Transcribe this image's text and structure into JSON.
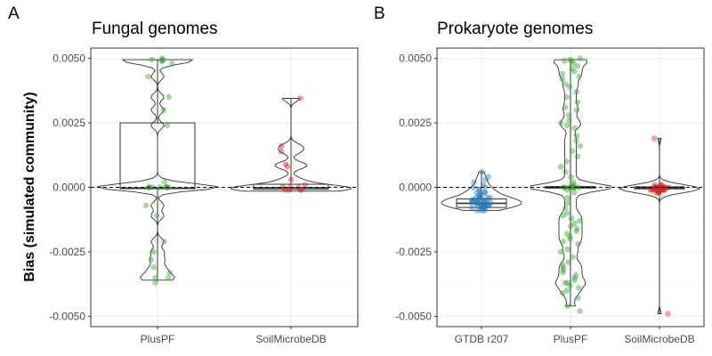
{
  "colors": {
    "GTDB r207": "#1f78b4",
    "PlusPF": "#33a02c",
    "SoilMicrobeDB": "#e31a1c",
    "grid_major": "#ebebeb",
    "grid_minor": "#f5f5f5",
    "panel_border": "#333333",
    "zero_line": "#000000"
  },
  "ylabel": "Bias (simulated community)",
  "chart_data": [
    {
      "type": "box_violin_jitter",
      "panel_letter": "A",
      "title": "Fungal genomes",
      "ylabel": "Bias (simulated community)",
      "ylim": [
        -0.0054,
        0.0054
      ],
      "yticks": [
        0.005,
        0.0025,
        0.0,
        -0.0025,
        -0.005
      ],
      "ytick_labels": [
        "0.0050",
        "0.0025",
        "0.0000",
        "-0.0025",
        "-0.0050"
      ],
      "zero_reference_line": 0,
      "grid": true,
      "categories": [
        "PlusPF",
        "SoilMicrobeDB"
      ],
      "groups": [
        {
          "name": "PlusPF",
          "box": {
            "q1": -5e-05,
            "median": -3e-05,
            "q3": 0.0025,
            "whisker_low": -0.0036,
            "whisker_high": 0.00495
          },
          "violin_range": [
            -0.0036,
            0.00495
          ],
          "points": [
            0.005,
            0.00495,
            0.0049,
            0.0048,
            0.00495,
            0.0049,
            0.0043,
            0.0035,
            0.003,
            0.0024,
            0.0002,
            0.0,
            0.0,
            0.0,
            0.0,
            0.0,
            0.0,
            0.0,
            0.0,
            0.0,
            -0.0007,
            -0.0011,
            -0.0021,
            -0.0025,
            -0.0028,
            -0.0031,
            -0.0033,
            -0.0035,
            -0.0035,
            -0.0037
          ]
        },
        {
          "name": "SoilMicrobeDB",
          "box": {
            "q1": -8e-05,
            "median": -2e-05,
            "q3": 0.00012,
            "whisker_low": -0.00015,
            "whisker_high": 0.00345
          },
          "violin_range": [
            -0.00015,
            0.00345
          ],
          "points": [
            0.00345,
            0.0016,
            0.0014,
            0.0009,
            0.0008,
            0.0003,
            0.0001,
            0.0,
            0.0,
            0.0,
            -0.0001,
            -0.0001,
            -0.0001,
            -0.0001
          ]
        }
      ]
    },
    {
      "type": "box_violin_jitter",
      "panel_letter": "B",
      "title": "Prokaryote genomes",
      "ylim": [
        -0.0054,
        0.0054
      ],
      "yticks": [
        0.005,
        0.0025,
        0.0,
        -0.0025,
        -0.005
      ],
      "ytick_labels": [
        "0.0050",
        "0.0025",
        "0.0000",
        "-0.0025",
        "-0.0050"
      ],
      "zero_reference_line": 0,
      "grid": true,
      "categories": [
        "GTDB r207",
        "PlusPF",
        "SoilMicrobeDB"
      ],
      "groups": [
        {
          "name": "GTDB r207",
          "box": {
            "q1": -0.00078,
            "median": -0.00062,
            "q3": -0.00045,
            "whisker_low": -0.0009,
            "whisker_high": 0.0006
          },
          "violin_range": [
            -0.0009,
            0.0006
          ],
          "points": [
            0.0006,
            0.0004,
            0.0003,
            0.0002,
            0.0001,
            0.0,
            0.0,
            -0.0001,
            -0.0002,
            -0.0002,
            -0.0003,
            -0.0003,
            -0.0004,
            -0.0004,
            -0.0004,
            -0.0005,
            -0.0005,
            -0.0005,
            -0.0005,
            -0.0006,
            -0.0006,
            -0.0006,
            -0.0006,
            -0.0006,
            -0.0007,
            -0.0007,
            -0.0007,
            -0.0007,
            -0.0007,
            -0.0008,
            -0.0008,
            -0.0008,
            -0.0008,
            -0.0009,
            -0.0009,
            -0.0009,
            -0.0005,
            -0.0006,
            -0.0004,
            -0.0003,
            -0.0007,
            -0.0006,
            -0.0005,
            -0.0008,
            -0.0002,
            -0.0001,
            -0.0004,
            -0.0006,
            -0.0007,
            -0.0005
          ]
        },
        {
          "name": "PlusPF",
          "box": {
            "q1": -3e-05,
            "median": 0.0,
            "q3": 3e-05,
            "whisker_low": -0.0046,
            "whisker_high": 0.00495
          },
          "violin_range": [
            -0.0046,
            0.00495
          ],
          "points": [
            0.005,
            0.00495,
            0.0049,
            0.0049,
            0.0048,
            0.0047,
            0.0046,
            0.0045,
            0.0044,
            0.0043,
            0.0042,
            0.004,
            0.0039,
            0.0037,
            0.0035,
            0.0033,
            0.0031,
            0.003,
            0.0028,
            0.0026,
            0.0025,
            0.0024,
            0.0023,
            0.002,
            0.0018,
            0.0016,
            0.0014,
            0.0012,
            0.001,
            0.0008,
            0.0006,
            0.0004,
            0.0002,
            0.0001,
            0.0,
            0.0,
            0.0,
            0.0,
            0.0,
            0.0,
            0.0,
            0.0,
            0.0,
            0.0,
            -0.0001,
            -0.0002,
            -0.0004,
            -0.0006,
            -0.0008,
            -0.001,
            -0.0011,
            -0.0012,
            -0.0013,
            -0.0014,
            -0.0015,
            -0.0016,
            -0.0017,
            -0.0018,
            -0.0019,
            -0.002,
            -0.0021,
            -0.0022,
            -0.0024,
            -0.0025,
            -0.0027,
            -0.0029,
            -0.003,
            -0.0031,
            -0.0032,
            -0.0033,
            -0.0034,
            -0.0035,
            -0.0036,
            -0.0037,
            -0.0037,
            -0.0038,
            -0.0039,
            -0.004,
            -0.0041,
            -0.0043,
            -0.0046,
            -0.0048
          ]
        },
        {
          "name": "SoilMicrobeDB",
          "box": {
            "q1": -6e-05,
            "median": -2e-05,
            "q3": 2e-05,
            "whisker_low": -0.0049,
            "whisker_high": 0.0019
          },
          "violin_range": [
            -0.0049,
            0.0019
          ],
          "points": [
            0.0019,
            0.0001,
            0.0001,
            0.0,
            0.0,
            0.0,
            0.0,
            0.0,
            0.0,
            0.0,
            0.0,
            0.0,
            -0.0001,
            -0.0001,
            -0.0001,
            -0.0001,
            -0.0001,
            -0.0001,
            -0.0001,
            -0.0002,
            -0.0002,
            -0.0002,
            -0.0001,
            0.0,
            0.0001,
            -0.0001,
            0.0,
            -0.0002,
            -0.0001,
            0.0,
            -0.0049
          ]
        }
      ]
    }
  ]
}
